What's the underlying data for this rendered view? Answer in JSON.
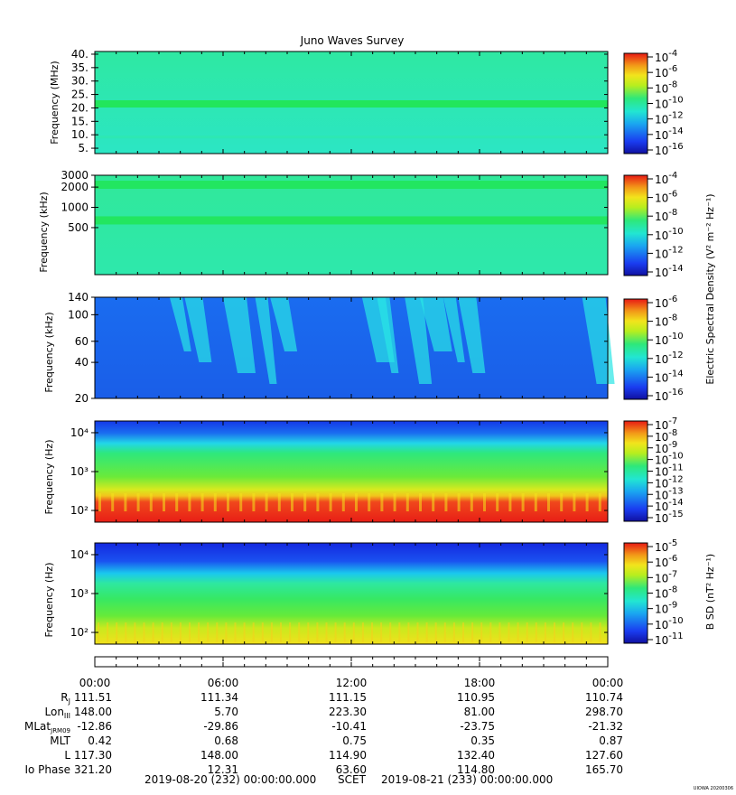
{
  "title": "Juno Waves Survey",
  "footer_stamp": "UIOWA 20200306",
  "scet_line": {
    "start": "2019-08-20 (232) 00:00:00.000",
    "label": "SCET",
    "end": "2019-08-21 (233) 00:00:00.000"
  },
  "colors": {
    "background_green": "#2fe88a",
    "background_cyan": "#29e6c9",
    "background_blue": "#1a64f0",
    "feature_cyan": "#29e6e6",
    "red": "#e8201c",
    "yellow": "#f2e61c"
  },
  "chart_data": [
    {
      "type": "heatmap",
      "panel": "waves-high-frequency",
      "ylabel": "Frequency (MHz)",
      "yticks": [
        "40.",
        "35.",
        "30.",
        "25.",
        "20.",
        "15.",
        "10.",
        "5."
      ],
      "ytick_values": [
        40,
        35,
        30,
        25,
        20,
        15,
        10,
        5
      ],
      "ylim": [
        3,
        41
      ],
      "yscale": "linear",
      "colorbar_ticks": [
        "-4",
        "-6",
        "-8",
        "-10",
        "-12",
        "-14",
        "-16"
      ],
      "colorbar_base": "10",
      "features": [
        {
          "kind": "band",
          "y": 21.5,
          "description": "narrow green emission band across full time range"
        },
        {
          "kind": "faint-band",
          "y": 9
        }
      ]
    },
    {
      "type": "heatmap",
      "panel": "waves-mf",
      "ylabel": "Frequency (kHz)",
      "yticks": [
        "3000",
        "2000",
        "1000",
        "500"
      ],
      "ytick_values": [
        3000,
        2000,
        1000,
        500
      ],
      "ylim": [
        100,
        3000
      ],
      "yscale": "log",
      "colorbar_ticks": [
        "-4",
        "-6",
        "-8",
        "-10",
        "-12",
        "-14"
      ],
      "colorbar_base": "10",
      "features": [
        {
          "kind": "band",
          "y": 2200
        },
        {
          "kind": "band",
          "y": 650
        }
      ]
    },
    {
      "type": "heatmap",
      "panel": "waves-lf",
      "ylabel": "Frequency (kHz)",
      "yticks": [
        "140",
        "100",
        "60",
        "40",
        "20"
      ],
      "ytick_values": [
        140,
        100,
        60,
        40,
        20
      ],
      "ylim": [
        20,
        140
      ],
      "yscale": "log",
      "colorbar_ticks": [
        "-6",
        "-8",
        "-10",
        "-12",
        "-14",
        "-16"
      ],
      "colorbar_base": "10",
      "colorbar_title": "Electric Spectral Density (V² m⁻² Hz⁻¹)",
      "features": [
        {
          "kind": "bursts",
          "time_hours": [
            3.5,
            4.2,
            6.0,
            7.5,
            8.2,
            12.5,
            13.2,
            14.5,
            15.2,
            16.3,
            17.0,
            22.8
          ]
        }
      ]
    },
    {
      "type": "heatmap",
      "panel": "electric-lf",
      "ylabel": "Frequency (Hz)",
      "yticks": [
        "10⁴",
        "10³",
        "10²"
      ],
      "ytick_values": [
        10000,
        1000,
        100
      ],
      "ylim": [
        50,
        20000
      ],
      "yscale": "log",
      "colorbar_ticks": [
        "-7",
        "-8",
        "-9",
        "-10",
        "-11",
        "-12",
        "-13",
        "-14",
        "-15"
      ],
      "colorbar_base": "10",
      "features": [
        {
          "kind": "red-band",
          "range_hz": [
            50,
            250
          ]
        },
        {
          "kind": "upper-cutoff",
          "approx_hz": 4000
        }
      ]
    },
    {
      "type": "heatmap",
      "panel": "magnetic",
      "ylabel": "Frequency (Hz)",
      "yticks": [
        "10⁴",
        "10³",
        "10²"
      ],
      "ytick_values": [
        10000,
        1000,
        100
      ],
      "ylim": [
        50,
        20000
      ],
      "yscale": "log",
      "colorbar_ticks": [
        "-5",
        "-6",
        "-7",
        "-8",
        "-9",
        "-10",
        "-11"
      ],
      "colorbar_base": "10",
      "colorbar_title": "B SD (nT² Hz⁻¹)",
      "features": [
        {
          "kind": "yellow-band",
          "range_hz": [
            50,
            200
          ]
        }
      ]
    }
  ],
  "time_axis": {
    "labels": [
      "00:00",
      "06:00",
      "12:00",
      "18:00",
      "00:00"
    ],
    "hours": [
      0,
      6,
      12,
      18,
      24
    ]
  },
  "ephemeris": [
    {
      "label": "Rj",
      "values": [
        "111.51",
        "111.34",
        "111.15",
        "110.95",
        "110.74"
      ]
    },
    {
      "label": "LonIII",
      "values": [
        "148.00",
        "5.70",
        "223.30",
        "81.00",
        "298.70"
      ]
    },
    {
      "label": "MLatJRM09",
      "values": [
        "-12.86",
        "-29.86",
        "-10.41",
        "-23.75",
        "-21.32"
      ]
    },
    {
      "label": "MLT",
      "values": [
        "0.42",
        "0.68",
        "0.75",
        "0.35",
        "0.87"
      ]
    },
    {
      "label": "L",
      "values": [
        "117.30",
        "148.00",
        "114.90",
        "132.40",
        "127.60"
      ]
    },
    {
      "label": "Io Phase",
      "values": [
        "321.20",
        "12.31",
        "63.60",
        "114.80",
        "165.70"
      ]
    }
  ]
}
